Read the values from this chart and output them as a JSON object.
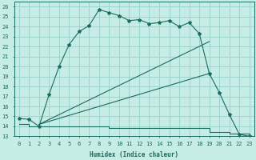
{
  "xlabel": "Humidex (Indice chaleur)",
  "bg_color": "#c6ece6",
  "grid_color": "#9dd4ce",
  "line_color": "#1a6b60",
  "xlim": [
    -0.5,
    23.5
  ],
  "ylim": [
    13,
    26.5
  ],
  "yticks": [
    13,
    14,
    15,
    16,
    17,
    18,
    19,
    20,
    21,
    22,
    23,
    24,
    25,
    26
  ],
  "xticks": [
    0,
    1,
    2,
    3,
    4,
    5,
    6,
    7,
    8,
    9,
    10,
    11,
    12,
    13,
    14,
    15,
    16,
    17,
    18,
    19,
    20,
    21,
    22,
    23
  ],
  "main_line": {
    "x": [
      0,
      1,
      2,
      3,
      4,
      5,
      6,
      7,
      8,
      9,
      10,
      11,
      12,
      13,
      14,
      15,
      16,
      17,
      18,
      19,
      20,
      21,
      22,
      23
    ],
    "y": [
      14.8,
      14.7,
      14.0,
      17.2,
      20.0,
      22.2,
      23.5,
      24.1,
      25.7,
      25.4,
      25.1,
      24.6,
      24.7,
      24.3,
      24.4,
      24.6,
      24.0,
      24.4,
      23.3,
      19.3,
      17.4,
      15.2,
      13.2,
      13.0
    ]
  },
  "line_upper": {
    "x": [
      2,
      19
    ],
    "y": [
      14.2,
      22.5
    ]
  },
  "line_mid": {
    "x": [
      2,
      19
    ],
    "y": [
      14.2,
      19.3
    ]
  },
  "line_lower_x": [
    0,
    1,
    2,
    3,
    4,
    5,
    6,
    7,
    8,
    9,
    10,
    11,
    12,
    13,
    14,
    15,
    16,
    17,
    18,
    19,
    20,
    21,
    22,
    23
  ],
  "line_lower_y": [
    14.2,
    14.0,
    14.0,
    14.0,
    14.0,
    14.0,
    14.0,
    14.0,
    14.0,
    13.8,
    13.8,
    13.8,
    13.8,
    13.8,
    13.8,
    13.8,
    13.8,
    13.8,
    13.8,
    13.4,
    13.4,
    13.3,
    13.3,
    13.1
  ]
}
